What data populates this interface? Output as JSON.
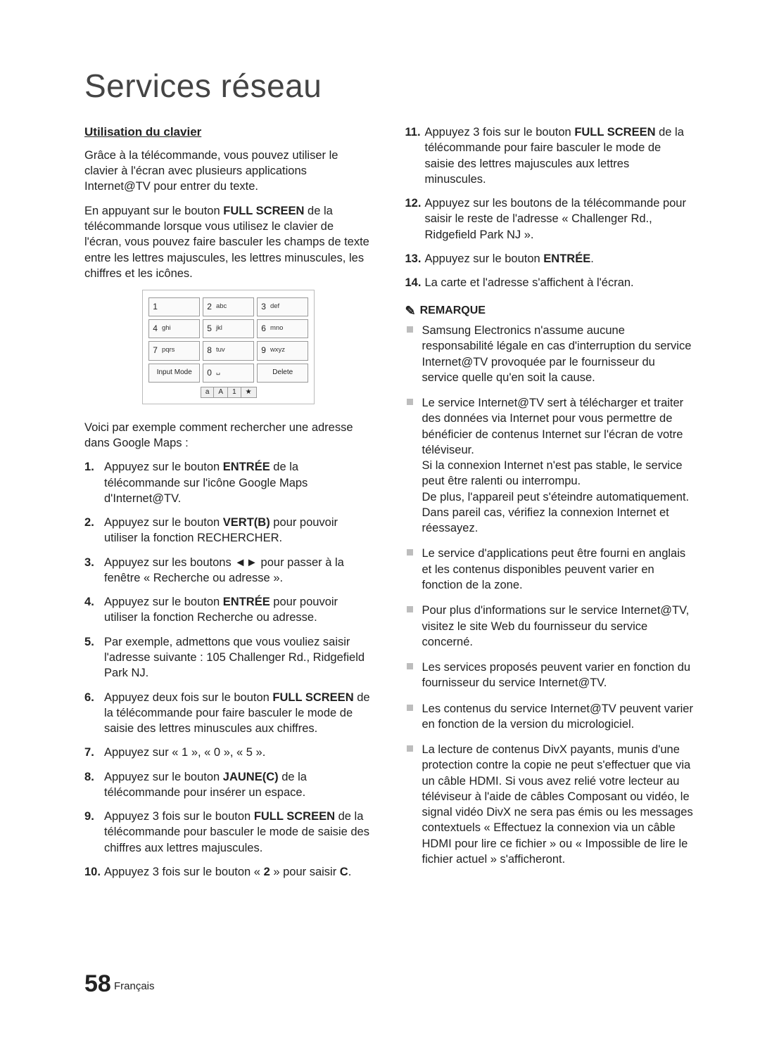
{
  "title": "Services réseau",
  "left": {
    "subhead": "Utilisation du clavier",
    "intro1": "Grâce à la télécommande, vous pouvez utiliser le clavier à l'écran avec plusieurs applications Internet@TV pour entrer du texte.",
    "intro2_a": "En appuyant sur le bouton ",
    "intro2_b": "FULL SCREEN",
    "intro2_c": " de la télécommande lorsque vous utilisez le clavier de l'écran, vous pouvez faire basculer les champs de texte entre les lettres majuscules, les lettres minuscules, les chiffres et les icônes.",
    "after_keypad": "Voici par exemple comment rechercher une adresse dans Google Maps :",
    "steps": {
      "s1a": "Appuyez sur le bouton ",
      "s1b": "ENTRÉE",
      "s1c": " de la télécommande sur l'icône Google Maps d'Internet@TV.",
      "s2a": "Appuyez sur le bouton ",
      "s2b": "VERT(B)",
      "s2c": " pour pouvoir utiliser la fonction RECHERCHER.",
      "s3a": "Appuyez sur les boutons ",
      "s3arrows": "◄►",
      "s3b": " pour passer à la fenêtre « Recherche ou adresse ».",
      "s4a": "Appuyez sur le bouton ",
      "s4b": "ENTRÉE",
      "s4c": " pour pouvoir utiliser la fonction Recherche ou adresse.",
      "s5": "Par exemple, admettons que vous vouliez saisir l'adresse suivante : 105 Challenger Rd., Ridgefield Park NJ.",
      "s6a": "Appuyez deux fois sur le bouton ",
      "s6b": "FULL SCREEN",
      "s6c": " de la télécommande pour faire basculer le mode de saisie des lettres minuscules aux chiffres.",
      "s7": "Appuyez sur « 1 », « 0 », « 5 ».",
      "s8a": "Appuyez sur le bouton ",
      "s8b": "JAUNE(C)",
      "s8c": " de la télécommande pour insérer un espace.",
      "s9a": "Appuyez 3 fois sur le bouton ",
      "s9b": "FULL SCREEN",
      "s9c": " de la télécommande pour basculer le mode de saisie des chiffres aux lettres majuscules.",
      "s10a": "Appuyez 3 fois sur le bouton « ",
      "s10b": "2",
      "s10c": " » pour saisir ",
      "s10d": "C",
      "s10e": "."
    }
  },
  "keypad": {
    "r1": [
      {
        "n": "1",
        "l": ""
      },
      {
        "n": "2",
        "l": "abc"
      },
      {
        "n": "3",
        "l": "def"
      }
    ],
    "r2": [
      {
        "n": "4",
        "l": "ghi"
      },
      {
        "n": "5",
        "l": "jkl"
      },
      {
        "n": "6",
        "l": "mno"
      }
    ],
    "r3": [
      {
        "n": "7",
        "l": "pqrs"
      },
      {
        "n": "8",
        "l": "tuv"
      },
      {
        "n": "9",
        "l": "wxyz"
      }
    ],
    "r4": {
      "mode": "Input Mode",
      "zero_n": "0",
      "zero_l": "␣",
      "del": "Delete"
    },
    "legend": [
      "a",
      "A",
      "1",
      "★"
    ]
  },
  "right": {
    "steps": {
      "s11a": "Appuyez 3 fois sur le bouton ",
      "s11b": "FULL SCREEN",
      "s11c": " de la télécommande pour faire basculer le mode de saisie des lettres majuscules aux lettres minuscules.",
      "s12": "Appuyez sur les boutons de la télécommande pour saisir le reste de l'adresse « Challenger Rd., Ridgefield Park NJ ».",
      "s13a": "Appuyez sur le bouton ",
      "s13b": "ENTRÉE",
      "s13c": ".",
      "s14": "La carte et l'adresse s'affichent à l'écran."
    },
    "note_head": "REMARQUE",
    "notes": {
      "n1": "Samsung Electronics n'assume aucune responsabilité légale en cas d'interruption du service Internet@TV provoquée par le fournisseur du service quelle qu'en soit la cause.",
      "n2": "Le service Internet@TV sert à télécharger et traiter des données via Internet pour vous permettre de bénéficier de contenus Internet sur l'écran de votre téléviseur.\nSi la connexion Internet n'est pas stable, le service peut être ralenti ou interrompu.\nDe plus, l'appareil peut s'éteindre automatiquement. Dans pareil cas, vérifiez la connexion Internet et réessayez.",
      "n3": "Le service d'applications peut être fourni en anglais et les contenus disponibles peuvent varier en fonction de la zone.",
      "n4": "Pour plus d'informations sur le service Internet@TV, visitez le site Web du fournisseur du service concerné.",
      "n5": "Les services proposés peuvent varier en fonction du fournisseur du service Internet@TV.",
      "n6": "Les contenus du service Internet@TV peuvent varier en fonction de la version du micrologiciel.",
      "n7": "La lecture de contenus DivX payants, munis d'une protection contre la copie ne peut s'effectuer que via un câble HDMI. Si vous avez relié votre lecteur au téléviseur à l'aide de câbles Composant ou vidéo, le signal vidéo DivX ne sera pas émis ou les messages contextuels « Effectuez la connexion via un câble HDMI pour lire ce fichier » ou « Impossible de lire le fichier actuel » s'afficheront."
    }
  },
  "footer": {
    "page": "58",
    "lang": "Français"
  }
}
